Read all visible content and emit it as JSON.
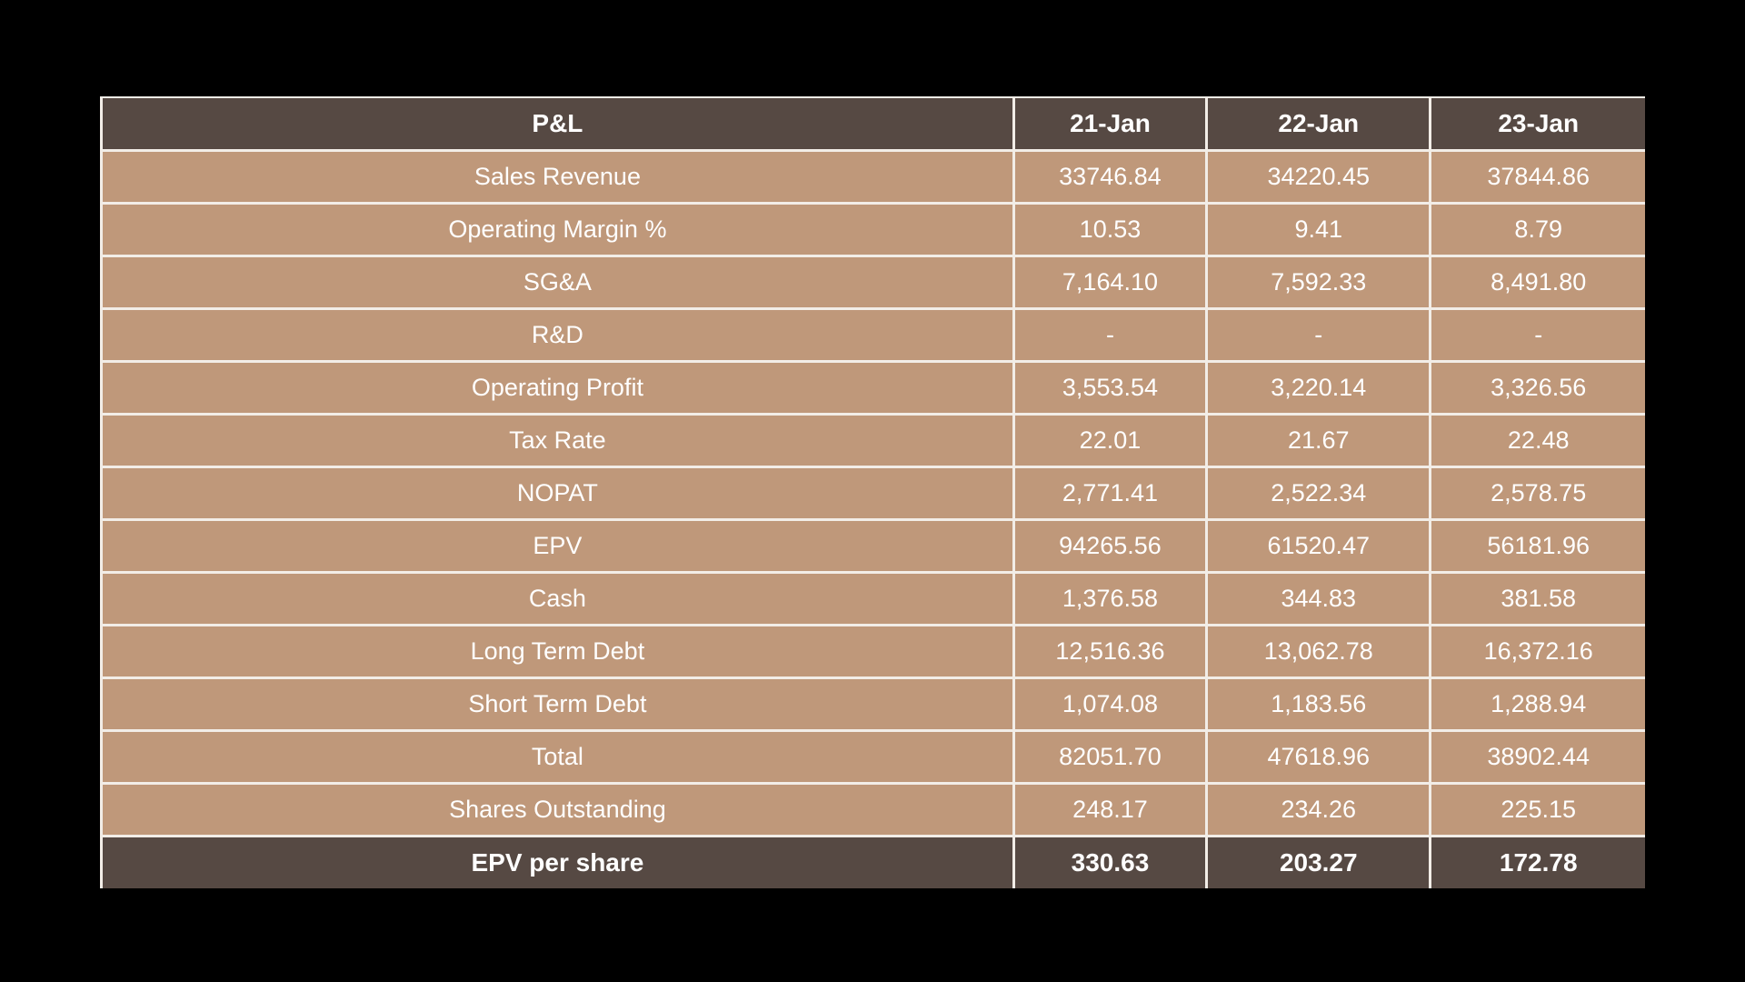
{
  "colors": {
    "page_bg": "#000000",
    "header_bg": "#564943",
    "row_bg": "#BF987A",
    "grid_line": "#F2EDE7",
    "text_color": "#FFFFFF"
  },
  "chart_data": {
    "type": "table",
    "title": "P&L",
    "columns": [
      "P&L",
      "21-Jan",
      "22-Jan",
      "23-Jan"
    ],
    "rows": [
      {
        "label": "Sales Revenue",
        "values": [
          "33746.84",
          "34220.45",
          "37844.86"
        ]
      },
      {
        "label": "Operating Margin %",
        "values": [
          "10.53",
          "9.41",
          "8.79"
        ]
      },
      {
        "label": "SG&A",
        "values": [
          "7,164.10",
          "7,592.33",
          "8,491.80"
        ]
      },
      {
        "label": "R&D",
        "values": [
          "-",
          "-",
          "-"
        ]
      },
      {
        "label": "Operating Profit",
        "values": [
          "3,553.54",
          "3,220.14",
          "3,326.56"
        ]
      },
      {
        "label": "Tax Rate",
        "values": [
          "22.01",
          "21.67",
          "22.48"
        ]
      },
      {
        "label": "NOPAT",
        "values": [
          "2,771.41",
          "2,522.34",
          "2,578.75"
        ]
      },
      {
        "label": "EPV",
        "values": [
          "94265.56",
          "61520.47",
          "56181.96"
        ]
      },
      {
        "label": "Cash",
        "values": [
          "1,376.58",
          "344.83",
          "381.58"
        ]
      },
      {
        "label": "Long Term Debt",
        "values": [
          "12,516.36",
          "13,062.78",
          "16,372.16"
        ]
      },
      {
        "label": "Short Term Debt",
        "values": [
          "1,074.08",
          "1,183.56",
          "1,288.94"
        ]
      },
      {
        "label": "Total",
        "values": [
          "82051.70",
          "47618.96",
          "38902.44"
        ]
      },
      {
        "label": "Shares Outstanding",
        "values": [
          "248.17",
          "234.26",
          "225.15"
        ]
      }
    ],
    "footer": {
      "label": "EPV per share",
      "values": [
        "330.63",
        "203.27",
        "172.78"
      ]
    },
    "layout": {
      "grid": "on",
      "header_position": "top",
      "label_column_align": "center",
      "value_align": "center"
    }
  }
}
